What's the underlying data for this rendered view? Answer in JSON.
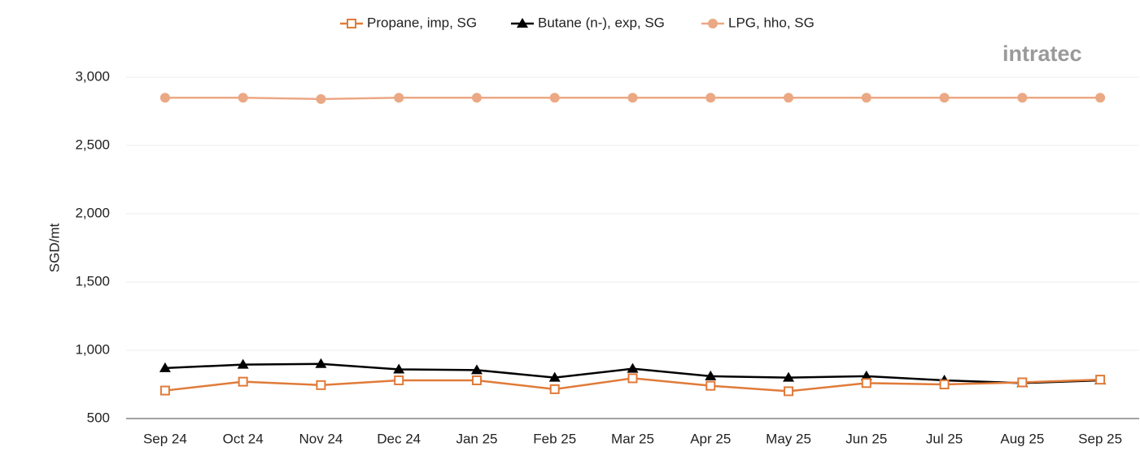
{
  "chart_data": {
    "type": "line",
    "y_label": "SGD/mt",
    "logo": "intratec",
    "categories": [
      "Sep 24",
      "Oct 24",
      "Nov 24",
      "Dec 24",
      "Jan 25",
      "Feb 25",
      "Mar 25",
      "Apr 25",
      "May 25",
      "Jun 25",
      "Jul 25",
      "Aug 25",
      "Sep 25"
    ],
    "series": [
      {
        "name": "Propane, imp, SG",
        "color": "#e07b39",
        "marker": "square-open",
        "values": [
          705,
          770,
          745,
          780,
          780,
          715,
          795,
          740,
          700,
          760,
          750,
          765,
          785
        ]
      },
      {
        "name": "Butane (n-), exp, SG",
        "color": "#000000",
        "marker": "triangle",
        "values": [
          870,
          895,
          900,
          860,
          855,
          800,
          865,
          810,
          800,
          810,
          780,
          760,
          780
        ]
      },
      {
        "name": "LPG, hho, SG",
        "color": "#eba884",
        "marker": "circle",
        "values": [
          2850,
          2850,
          2840,
          2850,
          2850,
          2850,
          2850,
          2850,
          2850,
          2850,
          2850,
          2850,
          2850
        ]
      }
    ],
    "ylim": [
      500,
      3000
    ],
    "yticks": [
      500,
      {
        "value": 1000,
        "label": "1,000"
      },
      {
        "value": 1500,
        "label": "1,500"
      },
      {
        "value": 2000,
        "label": "2,000"
      },
      {
        "value": 2500,
        "label": "2,500"
      },
      {
        "value": 3000,
        "label": "3,000"
      }
    ],
    "grid": true,
    "legend": "top"
  }
}
